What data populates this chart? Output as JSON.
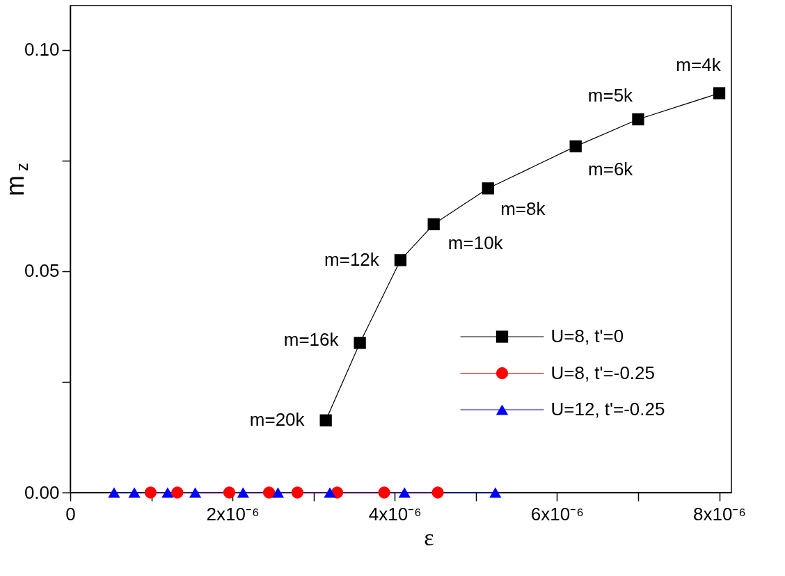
{
  "chart_data": {
    "type": "line",
    "xlabel": "ε",
    "ylabel": "m$_{z}$",
    "xlim": [
      0,
      8.15e-06
    ],
    "ylim": [
      0,
      0.11
    ],
    "xticks": [
      {
        "value": 0,
        "label": "0"
      },
      {
        "value": 1e-06,
        "label": null
      },
      {
        "value": 2e-06,
        "label": "2x10⁻⁶"
      },
      {
        "value": 3e-06,
        "label": null
      },
      {
        "value": 4e-06,
        "label": "4x10⁻⁶"
      },
      {
        "value": 5e-06,
        "label": null
      },
      {
        "value": 6e-06,
        "label": "6x10⁻⁶"
      },
      {
        "value": 7e-06,
        "label": null
      },
      {
        "value": 8e-06,
        "label": "8x10⁻⁶"
      }
    ],
    "yticks": [
      {
        "value": 0,
        "label": "0.00"
      },
      {
        "value": 0.025,
        "label": null
      },
      {
        "value": 0.05,
        "label": "0.05"
      },
      {
        "value": 0.075,
        "label": null
      },
      {
        "value": 0.1,
        "label": "0.10"
      }
    ],
    "grid": false,
    "legend": "bottom right",
    "line_style": "solid",
    "series": [
      {
        "name": "U=8, t'=0",
        "color": "#000000",
        "marker": "square",
        "x": [
          3.15e-06,
          3.57e-06,
          4.07e-06,
          4.48e-06,
          5.15e-06,
          6.23e-06,
          7e-06,
          8e-06
        ],
        "values": [
          0.0163,
          0.0338,
          0.0525,
          0.0606,
          0.0687,
          0.0782,
          0.0843,
          0.0902
        ]
      },
      {
        "name": "U=8, t'=-0.25",
        "color": "#ff0000",
        "marker": "circle",
        "x": [
          9.9e-07,
          1.32e-06,
          1.96e-06,
          2.45e-06,
          2.8e-06,
          3.29e-06,
          3.87e-06,
          4.53e-06
        ],
        "values": [
          0,
          0,
          0,
          0,
          0,
          0,
          0,
          0
        ]
      },
      {
        "name": "U=12, t'=-0.25",
        "color": "#0000ff",
        "marker": "triangle",
        "x": [
          5.4e-07,
          7.9e-07,
          1.2e-06,
          1.54e-06,
          2.13e-06,
          2.56e-06,
          3.2e-06,
          4.12e-06,
          5.24e-06
        ],
        "values": [
          0,
          0,
          0,
          0,
          0,
          0,
          0,
          0,
          0
        ]
      }
    ],
    "annotations": [
      {
        "text": "m=4k",
        "x": 8e-06,
        "y": 0.0902
      },
      {
        "text": "m=5k",
        "x": 7e-06,
        "y": 0.0843
      },
      {
        "text": "m=6k",
        "x": 6.23e-06,
        "y": 0.0782
      },
      {
        "text": "m=8k",
        "x": 5.15e-06,
        "y": 0.0687
      },
      {
        "text": "m=10k",
        "x": 4.48e-06,
        "y": 0.0606
      },
      {
        "text": "m=12k",
        "x": 4.07e-06,
        "y": 0.0525
      },
      {
        "text": "m=16k",
        "x": 3.57e-06,
        "y": 0.0338
      },
      {
        "text": "m=20k",
        "x": 3.15e-06,
        "y": 0.0163
      }
    ]
  }
}
